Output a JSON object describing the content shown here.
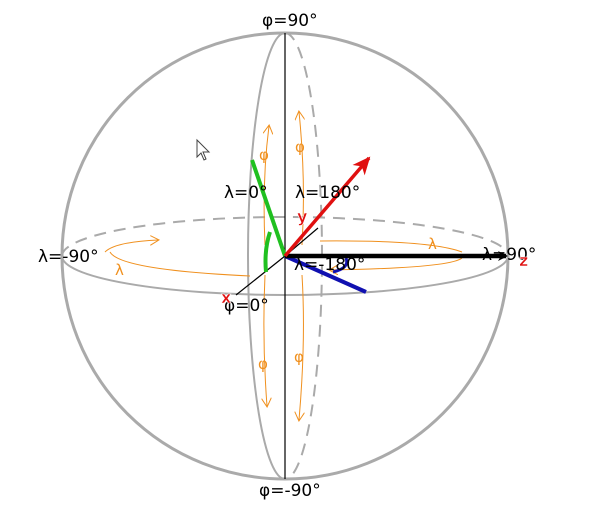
{
  "diagram": {
    "labels": {
      "north": "φ=90°",
      "south": "φ=-90°",
      "west": "λ=-90°",
      "east": "λ=90°",
      "front_meridian": "λ=0°",
      "back_meridian": "λ=180°",
      "equator_front": "φ=0°",
      "equator_back": "λ=-180°"
    },
    "axes": {
      "x": "x",
      "y": "y",
      "z": "z"
    },
    "symbols": {
      "phi": "φ",
      "lambda": "λ"
    },
    "colors": {
      "sphere": "#aaaaaa",
      "guide": "#f0901e",
      "axis_y": "#e01010",
      "axis_z": "#000000",
      "green_vector": "#20c020",
      "blue_vector": "#1010b0",
      "label_marker": "#e01010"
    }
  }
}
